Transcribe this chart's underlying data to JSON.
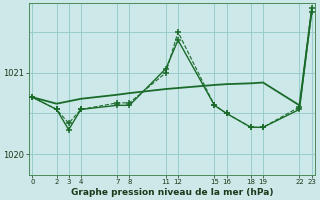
{
  "bg_color": "#cce8e8",
  "grid_color": "#99cccc",
  "line_color": "#1a6b2a",
  "title": "Graphe pression niveau de la mer (hPa)",
  "yticks": [
    1020,
    1021
  ],
  "ylim": [
    1019.75,
    1021.85
  ],
  "xlim": [
    -0.3,
    23.3
  ],
  "xtick_positions": [
    0,
    2,
    3,
    4,
    7,
    8,
    11,
    12,
    15,
    16,
    18,
    19,
    22,
    23
  ],
  "xtick_labels": [
    "0",
    "2",
    "3",
    "4",
    "7",
    "8",
    "11",
    "12",
    "15",
    "16",
    "18",
    "19",
    "22",
    "23"
  ],
  "line1_x": [
    0,
    2,
    3,
    4,
    7,
    8,
    11,
    12,
    15,
    16,
    18,
    19,
    22,
    23
  ],
  "line1_y": [
    1020.7,
    1020.55,
    1020.3,
    1020.55,
    1020.6,
    1020.6,
    1021.05,
    1021.4,
    1020.6,
    1020.5,
    1020.33,
    1020.33,
    1020.55,
    1021.75
  ],
  "line2_x": [
    0,
    2,
    3,
    4,
    7,
    8,
    11,
    12,
    15,
    16,
    18,
    19,
    22,
    23
  ],
  "line2_y": [
    1020.7,
    1020.55,
    1020.38,
    1020.55,
    1020.63,
    1020.63,
    1021.0,
    1021.5,
    1020.6,
    1020.5,
    1020.33,
    1020.33,
    1020.58,
    1021.8
  ],
  "line3_x": [
    0,
    2,
    3,
    4,
    7,
    8,
    11,
    15,
    16,
    18,
    19,
    22,
    23
  ],
  "line3_y": [
    1020.7,
    1020.62,
    1020.65,
    1020.68,
    1020.73,
    1020.75,
    1020.8,
    1020.85,
    1020.86,
    1020.87,
    1020.88,
    1020.6,
    1021.75
  ]
}
